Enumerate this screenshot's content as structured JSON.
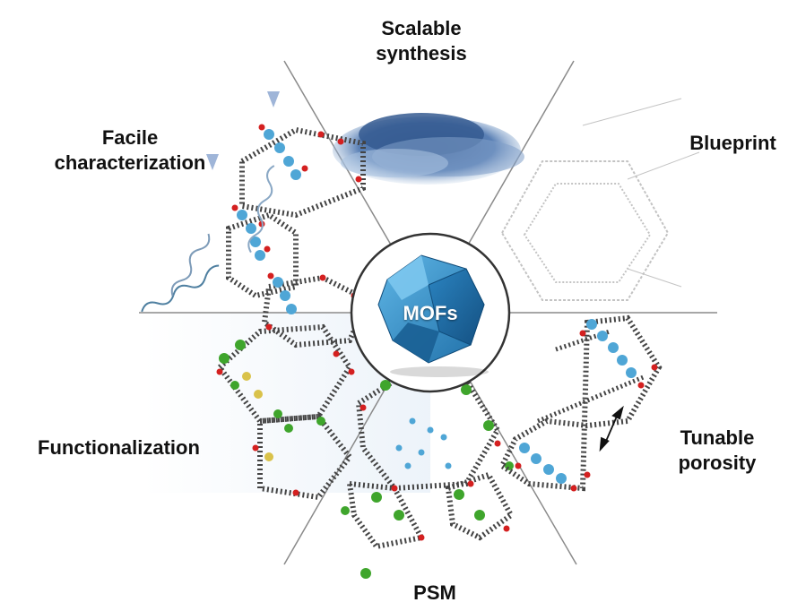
{
  "segments": {
    "scalable_synthesis": [
      "Scalable",
      "synthesis"
    ],
    "blueprint": "Blueprint",
    "tunable_porosity": [
      "Tunable",
      "porosity"
    ],
    "psm": "PSM",
    "functionalization": "Functionalization",
    "facile_characterization": [
      "Facile",
      "characterization"
    ]
  },
  "center": {
    "label": "MOFs"
  },
  "colors": {
    "oxygen": "#d42020",
    "metal_blue": "#4fa6d6",
    "metal_green": "#3fa52c",
    "metal_yellow": "#d9c24a",
    "carbon": "#555555",
    "mofs_blue": "#1e6fa8",
    "lines": "#8a8a8a"
  }
}
